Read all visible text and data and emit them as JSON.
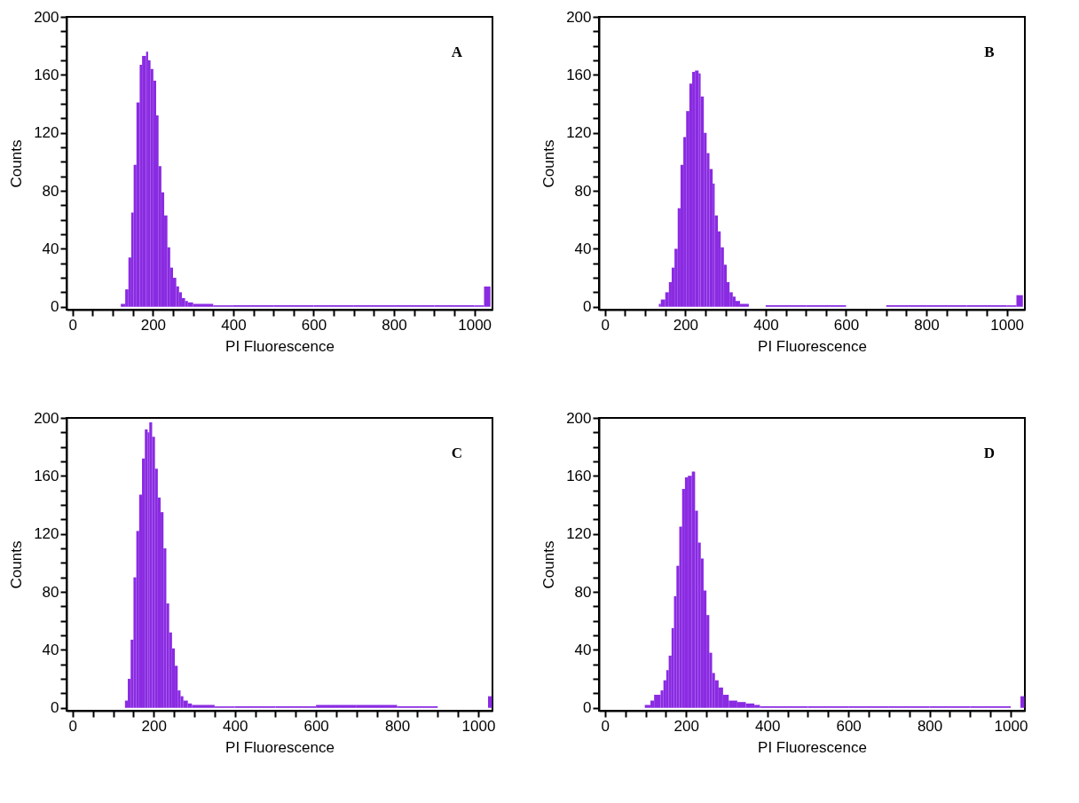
{
  "chart_data": [
    {
      "type": "histogram",
      "color": "#8a2be2",
      "xlabel": "PI Fluorescence",
      "ylabel": "Counts",
      "annotations": [
        "A"
      ],
      "xlim": [
        -15,
        1045
      ],
      "ylim": [
        -2,
        200
      ],
      "xticks": [
        0,
        {
          "value": 50,
          "label": null
        },
        {
          "value": 100,
          "label": null
        },
        {
          "value": 150,
          "label": null
        },
        200,
        {
          "value": 250,
          "label": null
        },
        {
          "value": 300,
          "label": null
        },
        {
          "value": 350,
          "label": null
        },
        400,
        {
          "value": 450,
          "label": null
        },
        {
          "value": 500,
          "label": null
        },
        {
          "value": 550,
          "label": null
        },
        600,
        {
          "value": 650,
          "label": null
        },
        {
          "value": 700,
          "label": null
        },
        {
          "value": 750,
          "label": null
        },
        800,
        {
          "value": 850,
          "label": null
        },
        {
          "value": 900,
          "label": null
        },
        {
          "value": 950,
          "label": null
        },
        1000
      ],
      "yticks": [
        0,
        {
          "value": 10,
          "label": null
        },
        {
          "value": 20,
          "label": null
        },
        {
          "value": 30,
          "label": null
        },
        40,
        {
          "value": 50,
          "label": null
        },
        {
          "value": 60,
          "label": null
        },
        {
          "value": 70,
          "label": null
        },
        80,
        {
          "value": 90,
          "label": null
        },
        {
          "value": 100,
          "label": null
        },
        {
          "value": 110,
          "label": null
        },
        120,
        {
          "value": 130,
          "label": null
        },
        {
          "value": 140,
          "label": null
        },
        {
          "value": 150,
          "label": null
        },
        160,
        {
          "value": 170,
          "label": null
        },
        {
          "value": 180,
          "label": null
        },
        {
          "value": 190,
          "label": null
        },
        200
      ],
      "bins": [
        120,
        131,
        139,
        146,
        152,
        159,
        167,
        173,
        183,
        188,
        194,
        201,
        208,
        214,
        221,
        228,
        236,
        243,
        250,
        258,
        265,
        272,
        280,
        287,
        300,
        350,
        400,
        500,
        600,
        700,
        800,
        900,
        1000,
        1024,
        1040
      ],
      "values": [
        2,
        12,
        34,
        65,
        98,
        141,
        167,
        173,
        176,
        170,
        164,
        156,
        132,
        97,
        79,
        63,
        41,
        27,
        20,
        14,
        10,
        6,
        4,
        3,
        2,
        1,
        1,
        1,
        1,
        1,
        1,
        1,
        1,
        14
      ]
    },
    {
      "type": "histogram",
      "color": "#8a2be2",
      "xlabel": "PI Fluorescence",
      "ylabel": "Counts",
      "annotations": [
        "B"
      ],
      "xlim": [
        -15,
        1045
      ],
      "ylim": [
        -2,
        200
      ],
      "xticks": [
        0,
        {
          "value": 50,
          "label": null
        },
        {
          "value": 100,
          "label": null
        },
        {
          "value": 150,
          "label": null
        },
        200,
        {
          "value": 250,
          "label": null
        },
        {
          "value": 300,
          "label": null
        },
        {
          "value": 350,
          "label": null
        },
        400,
        {
          "value": 450,
          "label": null
        },
        {
          "value": 500,
          "label": null
        },
        {
          "value": 550,
          "label": null
        },
        600,
        {
          "value": 650,
          "label": null
        },
        {
          "value": 700,
          "label": null
        },
        {
          "value": 750,
          "label": null
        },
        800,
        {
          "value": 850,
          "label": null
        },
        {
          "value": 900,
          "label": null
        },
        {
          "value": 950,
          "label": null
        },
        1000
      ],
      "yticks": [
        0,
        {
          "value": 10,
          "label": null
        },
        {
          "value": 20,
          "label": null
        },
        {
          "value": 30,
          "label": null
        },
        40,
        {
          "value": 50,
          "label": null
        },
        {
          "value": 60,
          "label": null
        },
        {
          "value": 70,
          "label": null
        },
        80,
        {
          "value": 90,
          "label": null
        },
        {
          "value": 100,
          "label": null
        },
        {
          "value": 110,
          "label": null
        },
        120,
        {
          "value": 130,
          "label": null
        },
        {
          "value": 140,
          "label": null
        },
        {
          "value": 150,
          "label": null
        },
        160,
        {
          "value": 170,
          "label": null
        },
        {
          "value": 180,
          "label": null
        },
        {
          "value": 190,
          "label": null
        },
        200
      ],
      "bins": [
        134,
        139,
        150,
        159,
        166,
        173,
        181,
        188,
        195,
        202,
        210,
        217,
        224,
        233,
        238,
        246,
        253,
        260,
        268,
        273,
        281,
        288,
        296,
        303,
        310,
        318,
        325,
        336,
        358,
        400,
        500,
        600,
        700,
        800,
        900,
        1000,
        1024,
        1040
      ],
      "values": [
        2,
        5,
        10,
        17,
        27,
        40,
        68,
        98,
        117,
        135,
        154,
        162,
        163,
        161,
        145,
        120,
        106,
        95,
        85,
        63,
        52,
        41,
        29,
        17,
        10,
        7,
        4,
        2,
        0,
        1,
        1,
        0,
        1,
        1,
        1,
        1,
        8
      ]
    },
    {
      "type": "histogram",
      "color": "#8a2be2",
      "xlabel": "PI Fluorescence",
      "ylabel": "Counts",
      "annotations": [
        "C"
      ],
      "xlim": [
        -15,
        1035
      ],
      "ylim": [
        -2,
        200
      ],
      "xticks": [
        0,
        {
          "value": 50,
          "label": null
        },
        {
          "value": 100,
          "label": null
        },
        {
          "value": 150,
          "label": null
        },
        200,
        {
          "value": 250,
          "label": null
        },
        {
          "value": 300,
          "label": null
        },
        {
          "value": 350,
          "label": null
        },
        400,
        {
          "value": 450,
          "label": null
        },
        {
          "value": 500,
          "label": null
        },
        {
          "value": 550,
          "label": null
        },
        600,
        {
          "value": 650,
          "label": null
        },
        {
          "value": 700,
          "label": null
        },
        {
          "value": 750,
          "label": null
        },
        800,
        {
          "value": 850,
          "label": null
        },
        {
          "value": 900,
          "label": null
        },
        {
          "value": 950,
          "label": null
        },
        1000
      ],
      "yticks": [
        0,
        {
          "value": 10,
          "label": null
        },
        {
          "value": 20,
          "label": null
        },
        {
          "value": 30,
          "label": null
        },
        40,
        {
          "value": 50,
          "label": null
        },
        {
          "value": 60,
          "label": null
        },
        {
          "value": 70,
          "label": null
        },
        80,
        {
          "value": 90,
          "label": null
        },
        {
          "value": 100,
          "label": null
        },
        {
          "value": 110,
          "label": null
        },
        120,
        {
          "value": 130,
          "label": null
        },
        {
          "value": 140,
          "label": null
        },
        {
          "value": 150,
          "label": null
        },
        160,
        {
          "value": 170,
          "label": null
        },
        {
          "value": 180,
          "label": null
        },
        {
          "value": 190,
          "label": null
        },
        200
      ],
      "bins": [
        129,
        136,
        143,
        150,
        157,
        164,
        171,
        178,
        185,
        189,
        196,
        203,
        210,
        217,
        224,
        231,
        238,
        245,
        252,
        259,
        266,
        273,
        284,
        294,
        350,
        400,
        500,
        600,
        700,
        800,
        900,
        1024,
        1034
      ],
      "values": [
        5,
        20,
        47,
        90,
        122,
        147,
        172,
        192,
        190,
        197,
        187,
        165,
        145,
        135,
        110,
        72,
        52,
        41,
        29,
        12,
        8,
        5,
        3,
        2,
        1,
        1,
        1,
        2,
        2,
        1,
        0,
        8
      ]
    },
    {
      "type": "histogram",
      "color": "#8a2be2",
      "xlabel": "PI Fluorescence",
      "ylabel": "Counts",
      "annotations": [
        "D"
      ],
      "xlim": [
        -15,
        1035
      ],
      "ylim": [
        -2,
        200
      ],
      "xticks": [
        0,
        {
          "value": 50,
          "label": null
        },
        {
          "value": 100,
          "label": null
        },
        {
          "value": 150,
          "label": null
        },
        200,
        {
          "value": 250,
          "label": null
        },
        {
          "value": 300,
          "label": null
        },
        {
          "value": 350,
          "label": null
        },
        400,
        {
          "value": 450,
          "label": null
        },
        {
          "value": 500,
          "label": null
        },
        {
          "value": 550,
          "label": null
        },
        600,
        {
          "value": 650,
          "label": null
        },
        {
          "value": 700,
          "label": null
        },
        {
          "value": 750,
          "label": null
        },
        800,
        {
          "value": 850,
          "label": null
        },
        {
          "value": 900,
          "label": null
        },
        {
          "value": 950,
          "label": null
        },
        1000
      ],
      "yticks": [
        0,
        {
          "value": 10,
          "label": null
        },
        {
          "value": 20,
          "label": null
        },
        {
          "value": 30,
          "label": null
        },
        40,
        {
          "value": 50,
          "label": null
        },
        {
          "value": 60,
          "label": null
        },
        {
          "value": 70,
          "label": null
        },
        80,
        {
          "value": 90,
          "label": null
        },
        {
          "value": 100,
          "label": null
        },
        {
          "value": 110,
          "label": null
        },
        120,
        {
          "value": 130,
          "label": null
        },
        {
          "value": 140,
          "label": null
        },
        {
          "value": 150,
          "label": null
        },
        160,
        {
          "value": 170,
          "label": null
        },
        {
          "value": 180,
          "label": null
        },
        {
          "value": 190,
          "label": null
        },
        200
      ],
      "bins": [
        98,
        112,
        121,
        137,
        144,
        151,
        157,
        164,
        170,
        176,
        183,
        190,
        197,
        204,
        214,
        222,
        229,
        236,
        243,
        250,
        257,
        264,
        271,
        280,
        291,
        305,
        326,
        347,
        368,
        382,
        500,
        600,
        700,
        800,
        900,
        1000,
        1024,
        1034
      ],
      "values": [
        2,
        5,
        9,
        12,
        19,
        26,
        36,
        55,
        77,
        98,
        125,
        151,
        159,
        160,
        163,
        136,
        114,
        103,
        81,
        64,
        38,
        24,
        19,
        14,
        9,
        5,
        4,
        3,
        2,
        1,
        1,
        1,
        1,
        1,
        1,
        0,
        8
      ]
    }
  ]
}
